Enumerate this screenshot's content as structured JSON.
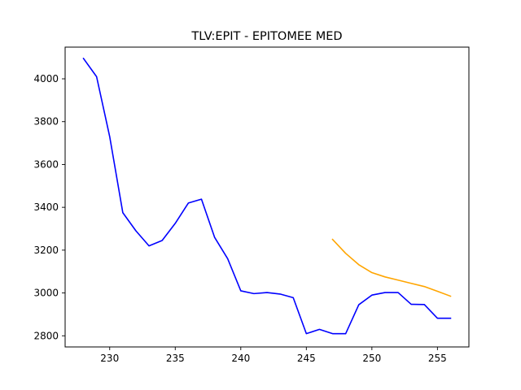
{
  "chart_data": {
    "type": "line",
    "title": "TLV:EPIT - EPITOMEE MED",
    "xlabel": "",
    "ylabel": "",
    "xlim": [
      226.6,
      257.4
    ],
    "ylim": [
      2748,
      4148
    ],
    "x_ticks": [
      230,
      235,
      240,
      245,
      250,
      255
    ],
    "y_ticks": [
      2800,
      3000,
      3200,
      3400,
      3600,
      3800,
      4000
    ],
    "grid": false,
    "legend": "none",
    "series": [
      {
        "color": "#0000ff",
        "x": [
          228,
          229,
          230,
          231,
          232,
          233,
          234,
          235,
          236,
          237,
          238,
          239,
          240,
          241,
          242,
          243,
          244,
          245,
          246,
          247,
          248,
          249,
          250,
          251,
          252,
          253,
          254,
          255,
          256
        ],
        "y": [
          4095,
          4010,
          3730,
          3375,
          3290,
          3220,
          3245,
          3325,
          3420,
          3438,
          3260,
          3160,
          3010,
          2997,
          3002,
          2995,
          2978,
          2810,
          2830,
          2810,
          2810,
          2945,
          2990,
          3002,
          3002,
          2947,
          2946,
          2882,
          2882
        ]
      },
      {
        "color": "#ffa500",
        "x": [
          247,
          248,
          249,
          250,
          251,
          252,
          253,
          254,
          255,
          256
        ],
        "y": [
          3250,
          3185,
          3132,
          3095,
          3075,
          3060,
          3045,
          3030,
          3008,
          2985
        ]
      }
    ]
  }
}
